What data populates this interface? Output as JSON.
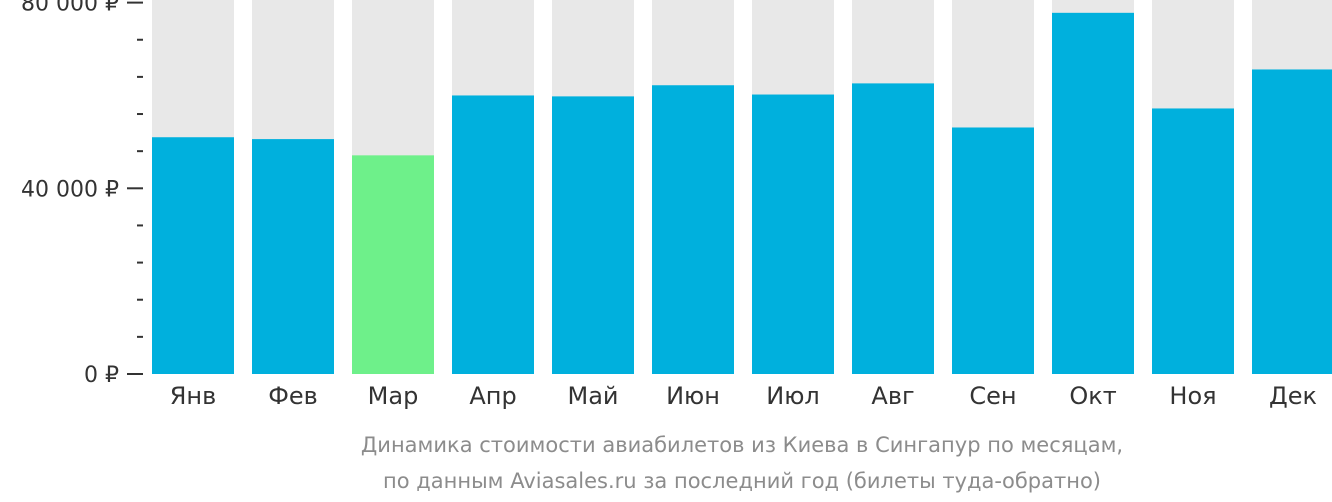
{
  "chart_data": {
    "type": "bar",
    "categories": [
      "Янв",
      "Фев",
      "Мар",
      "Апр",
      "Май",
      "Июн",
      "Июл",
      "Авг",
      "Сен",
      "Окт",
      "Ноя",
      "Дек"
    ],
    "values": [
      51000,
      50600,
      47100,
      60000,
      59800,
      62200,
      60200,
      62600,
      53100,
      77800,
      57200,
      65600
    ],
    "ylim": [
      0,
      82500
    ],
    "yticks": [
      {
        "value": 80000,
        "label": "80 000 ₽"
      },
      {
        "value": 40000,
        "label": "40 000 ₽"
      },
      {
        "value": 0,
        "label": "0 ₽"
      }
    ],
    "minor_tick_step": 8000,
    "highlight_index": 2,
    "colors": {
      "bar": "#00b0dd",
      "highlight": "#6ef08a",
      "background_bar": "#e8e8e8",
      "axis": "#333333"
    },
    "caption_lines": [
      "Динамика стоимости авиабилетов из Киева в Сингапур по месяцам,",
      "по данным Aviasales.ru за последний год (билеты туда-обратно)"
    ]
  }
}
